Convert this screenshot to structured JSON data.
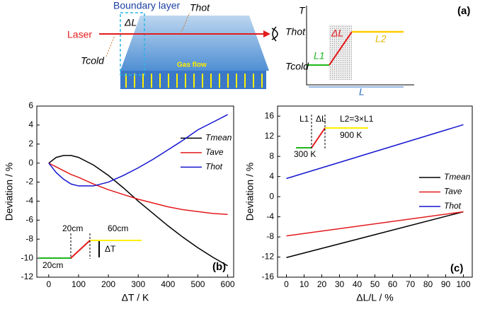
{
  "diagram": {
    "boundary_layer": "Boundary layer",
    "delta_l": "ΔL",
    "t_hot": "Thot",
    "laser": "Laser",
    "t_cold": "Tcold",
    "gas_flow": "Gas flow",
    "plot_t": "T",
    "plot_t_hot": "Thot",
    "plot_delta_l": "ΔL",
    "plot_l2": "L2",
    "plot_l1": "L1",
    "plot_t_cold": "Tcold",
    "plot_l": "L",
    "panel": "(a)"
  },
  "chart_data": [
    {
      "type": "line",
      "xlabel": "ΔT / K",
      "ylabel": "Deviation / %",
      "x": [
        0,
        25,
        50,
        75,
        100,
        150,
        200,
        250,
        300,
        350,
        400,
        450,
        500,
        550,
        600
      ],
      "series": [
        {
          "name": "Tmean",
          "color": "#000000",
          "values": [
            0,
            0.6,
            0.8,
            0.8,
            0.6,
            -0.2,
            -1.3,
            -2.6,
            -4.0,
            -5.3,
            -6.6,
            -7.8,
            -8.9,
            -9.9,
            -10.8
          ]
        },
        {
          "name": "Tave",
          "color": "#e41a1c",
          "values": [
            0,
            -0.4,
            -0.8,
            -1.2,
            -1.5,
            -2.2,
            -2.8,
            -3.3,
            -3.8,
            -4.2,
            -4.6,
            -4.9,
            -5.1,
            -5.3,
            -5.4
          ]
        },
        {
          "name": "Thot",
          "color": "#1515d0",
          "values": [
            0,
            -1.0,
            -1.7,
            -2.2,
            -2.4,
            -2.4,
            -2.0,
            -1.3,
            -0.5,
            0.4,
            1.4,
            2.4,
            3.5,
            4.3,
            5.1
          ]
        }
      ],
      "xlim": [
        -40,
        620
      ],
      "xticks": [
        0,
        100,
        200,
        300,
        400,
        500,
        600
      ],
      "ylim": [
        -12,
        6
      ],
      "yticks": [
        -12,
        -10,
        -8,
        -6,
        -4,
        -2,
        0,
        2,
        4,
        6
      ],
      "legend": "right",
      "annotations": [
        "20cm",
        "60cm",
        "ΔT",
        "20cm",
        "(b)"
      ]
    },
    {
      "type": "line",
      "xlabel": "ΔL/L / %",
      "ylabel": "Deviation / %",
      "x": [
        0,
        100
      ],
      "series": [
        {
          "name": "Tmean",
          "color": "#000000",
          "values": [
            -12.1,
            -3
          ]
        },
        {
          "name": "Tave",
          "color": "#e41a1c",
          "values": [
            -7.8,
            -3
          ]
        },
        {
          "name": "Thot",
          "color": "#1515d0",
          "values": [
            3.6,
            14.3
          ]
        }
      ],
      "xlim": [
        -5,
        105
      ],
      "xticks": [
        0,
        10,
        20,
        30,
        40,
        50,
        60,
        70,
        80,
        90,
        100
      ],
      "ylim": [
        -16,
        18
      ],
      "yticks": [
        -16,
        -12,
        -8,
        -4,
        0,
        4,
        8,
        12,
        16
      ],
      "legend": "center right",
      "annotations": [
        "L1",
        "ΔL",
        "L2=3×L1",
        "300 K",
        "900 K",
        "(c)"
      ]
    }
  ]
}
